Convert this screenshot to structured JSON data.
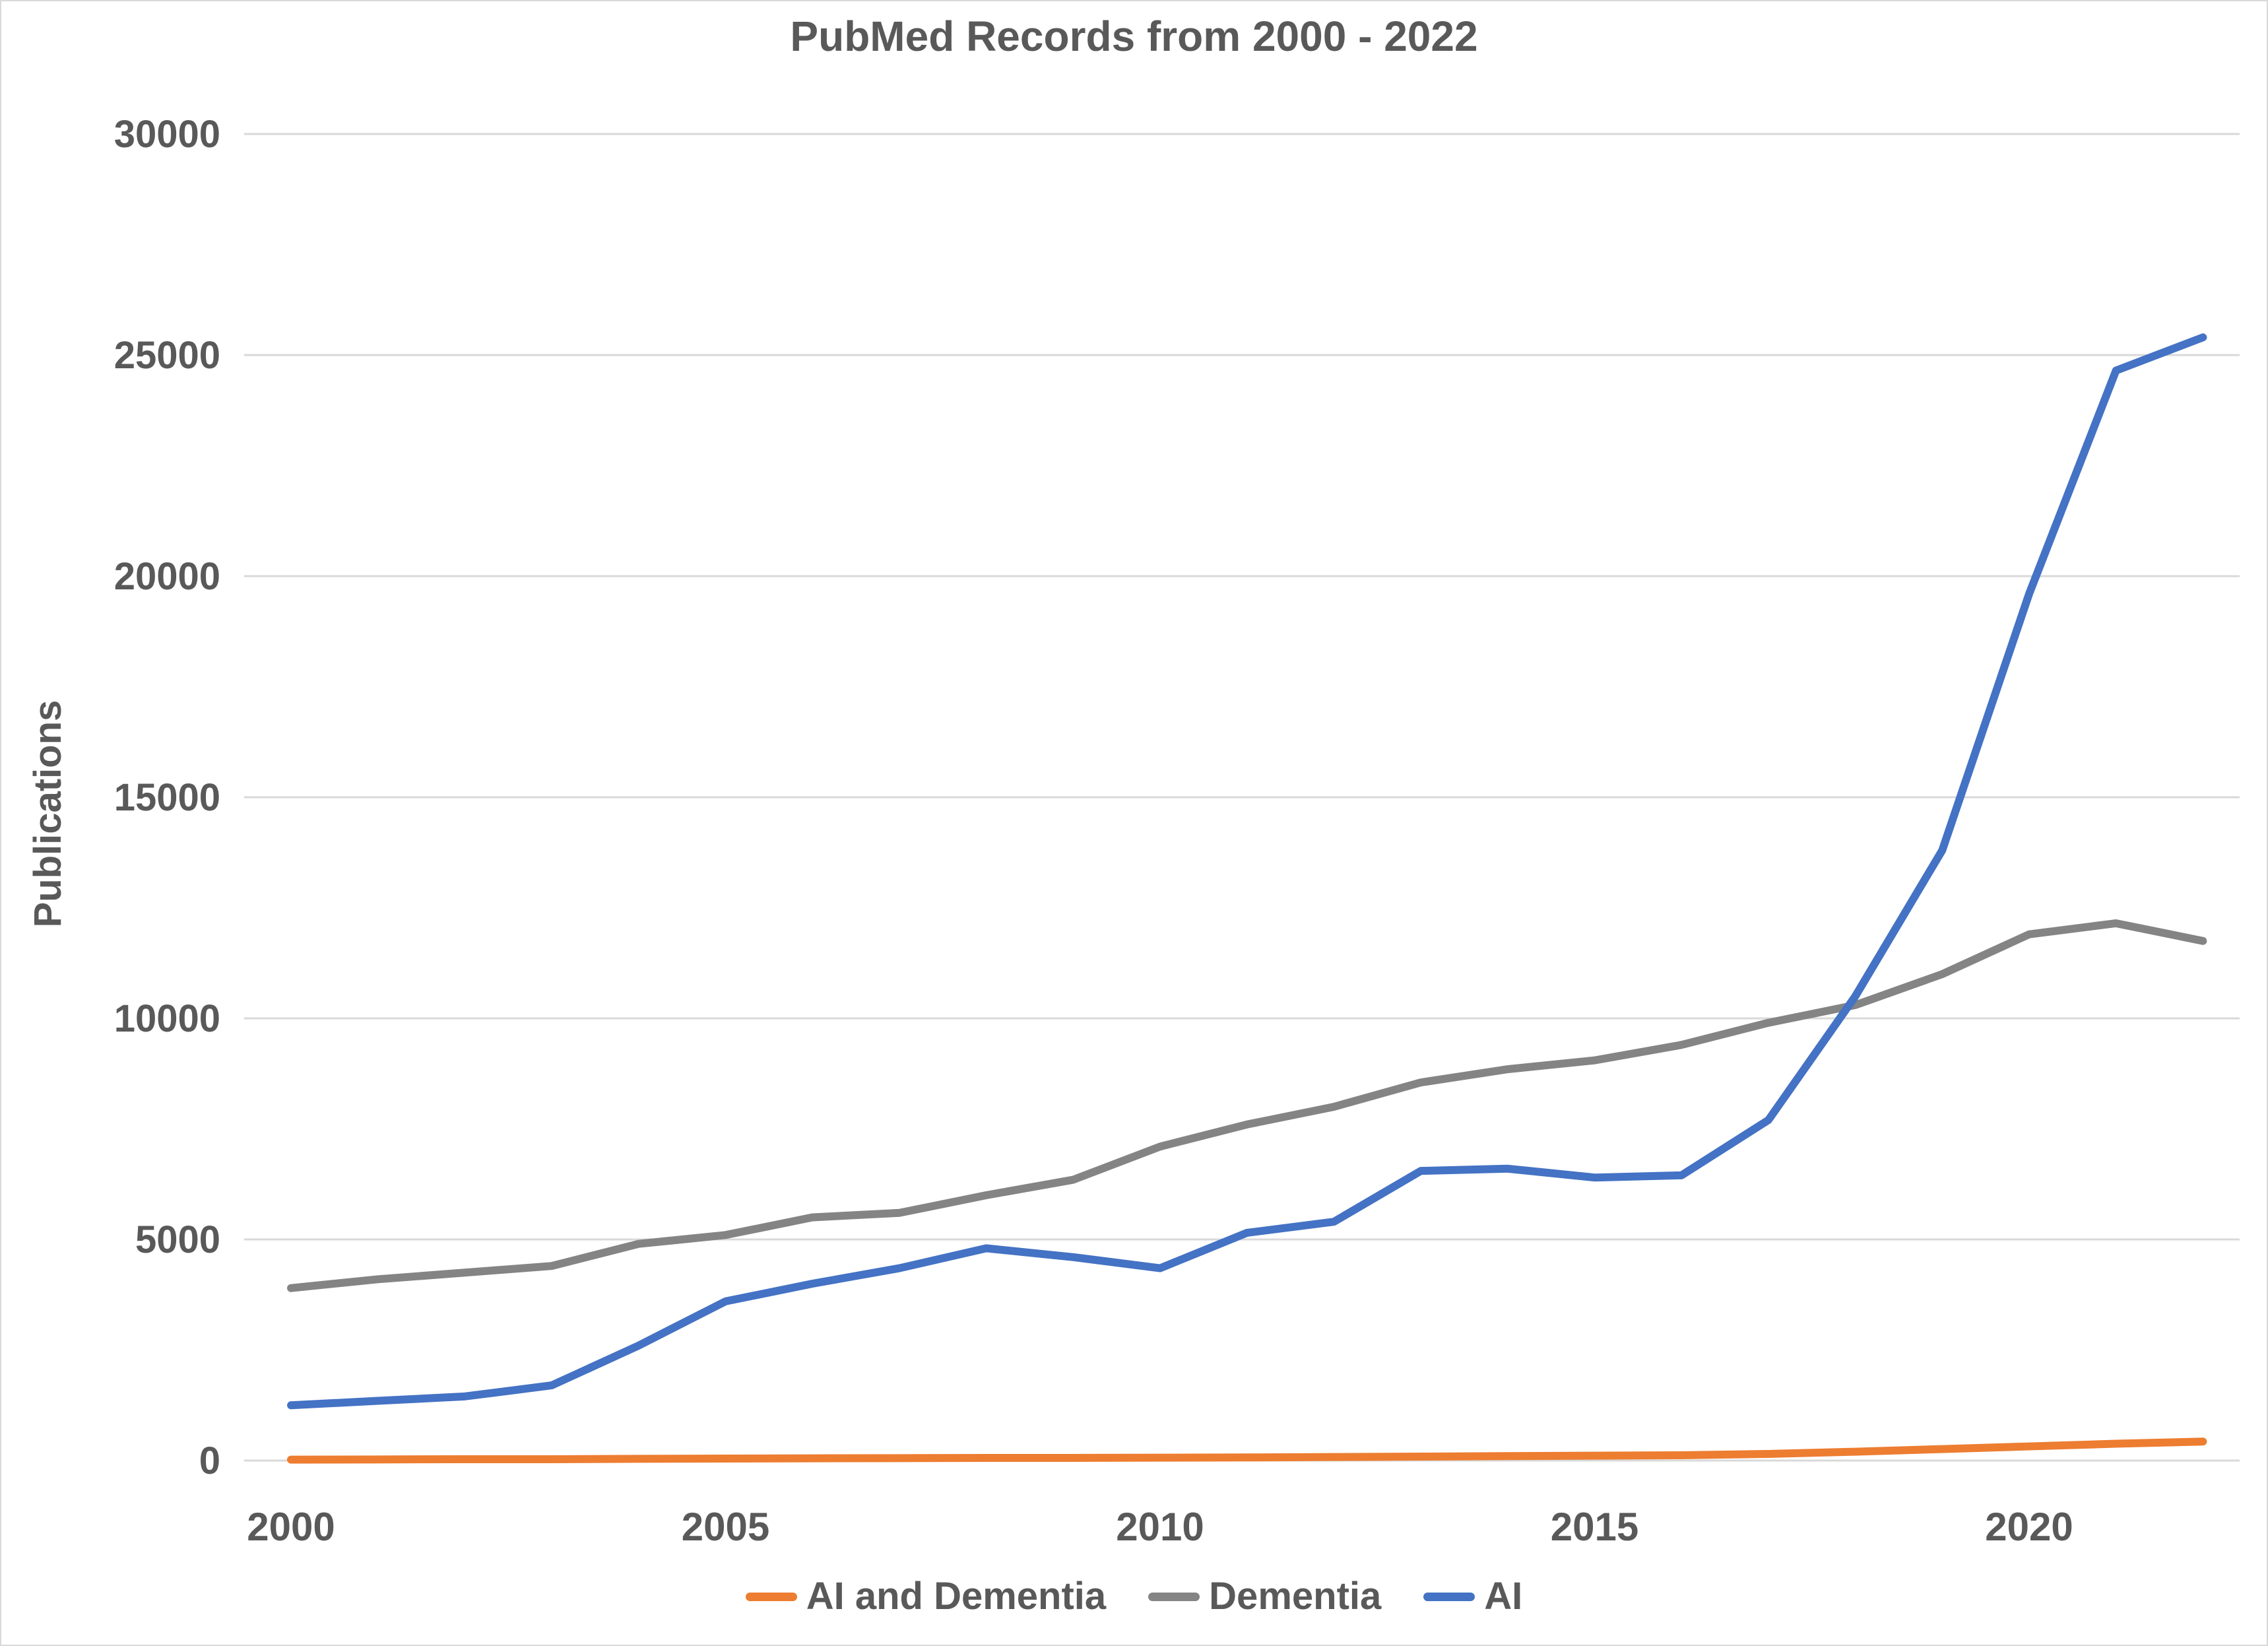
{
  "colors": {
    "background": "#FFFFFF",
    "frame": "#D9D9D9",
    "gridline": "#D9D9D9",
    "text": "#595959",
    "orange": "#ED7D31",
    "gray": "#848484",
    "blue": "#4472C4"
  },
  "chart_data": {
    "type": "line",
    "title": "PubMed Records from 2000 - 2022",
    "xlabel": "",
    "ylabel": "Publications",
    "ylim": [
      0,
      30000
    ],
    "y_ticks": [
      0,
      5000,
      10000,
      15000,
      20000,
      25000,
      30000
    ],
    "x": [
      2000,
      2001,
      2002,
      2003,
      2004,
      2005,
      2006,
      2007,
      2008,
      2009,
      2010,
      2011,
      2012,
      2013,
      2014,
      2015,
      2016,
      2017,
      2018,
      2019,
      2020,
      2021,
      2022
    ],
    "x_tick_labels": [
      "2000",
      "2005",
      "2010",
      "2015",
      "2020"
    ],
    "grid": "horizontal",
    "legend_position": "bottom",
    "series": [
      {
        "name": "AI and Dementia",
        "color": "#ED7D31",
        "values": [
          20,
          25,
          30,
          30,
          40,
          45,
          50,
          55,
          60,
          60,
          65,
          70,
          80,
          90,
          100,
          110,
          120,
          150,
          200,
          260,
          320,
          380,
          430
        ]
      },
      {
        "name": "Dementia",
        "color": "#848484",
        "values": [
          3900,
          4100,
          4250,
          4400,
          4900,
          5100,
          5500,
          5600,
          6000,
          6350,
          7100,
          7600,
          8000,
          8550,
          8850,
          9050,
          9400,
          9900,
          10300,
          11000,
          11900,
          12150,
          11750
        ]
      },
      {
        "name": "AI",
        "color": "#4472C4",
        "values": [
          1250,
          1350,
          1450,
          1700,
          2600,
          3600,
          4000,
          4350,
          4800,
          4600,
          4350,
          5150,
          5400,
          6550,
          6600,
          6400,
          6450,
          7700,
          10500,
          13800,
          19600,
          24650,
          25400
        ]
      }
    ]
  }
}
